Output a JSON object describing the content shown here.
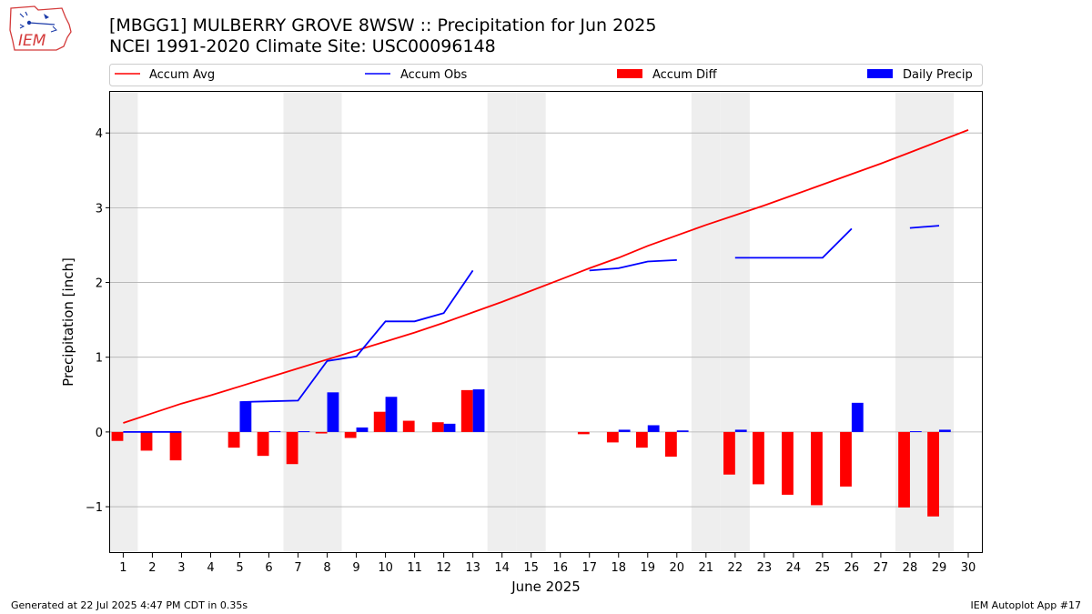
{
  "title_line1": "[MBGG1] MULBERRY GROVE 8WSW :: Precipitation for Jun 2025",
  "title_line2": "NCEI 1991-2020 Climate Site: USC00096148",
  "logo_text": "IEM",
  "footer_left": "Generated at 22 Jul 2025 4:47 PM CDT in 0.35s",
  "footer_right": "IEM Autoplot App #17",
  "colors": {
    "accum_avg": "#ff0000",
    "accum_obs": "#0000ff",
    "accum_diff": "#ff0000",
    "daily_precip": "#0000ff",
    "weekend_band": "#eeeeee",
    "grid": "#b0b0b0"
  },
  "chart_data": {
    "type": "bar",
    "xlabel": "June 2025",
    "ylabel": "Precipitation [inch]",
    "ylim": [
      -1.62,
      4.55
    ],
    "yticks": [
      -1,
      0,
      1,
      2,
      3,
      4
    ],
    "ytick_labels": [
      "−1",
      "0",
      "1",
      "2",
      "3",
      "4"
    ],
    "x": [
      1,
      2,
      3,
      4,
      5,
      6,
      7,
      8,
      9,
      10,
      11,
      12,
      13,
      14,
      15,
      16,
      17,
      18,
      19,
      20,
      21,
      22,
      23,
      24,
      25,
      26,
      27,
      28,
      29,
      30
    ],
    "weekend_days": [
      1,
      7,
      8,
      14,
      15,
      21,
      22,
      28,
      29
    ],
    "grid": "horizontal",
    "legend_placement": "top",
    "series": [
      {
        "name": "Accum Avg",
        "kind": "line",
        "values": [
          0.12,
          0.25,
          0.38,
          0.49,
          0.61,
          0.73,
          0.85,
          0.97,
          1.09,
          1.21,
          1.33,
          1.46,
          1.6,
          1.74,
          1.89,
          2.04,
          2.19,
          2.33,
          2.49,
          2.63,
          2.77,
          2.9,
          3.03,
          3.17,
          3.31,
          3.45,
          3.59,
          3.74,
          3.89,
          4.04
        ]
      },
      {
        "name": "Accum Obs",
        "kind": "line",
        "values": [
          0.0,
          0.0,
          0.0,
          null,
          0.4,
          0.41,
          0.42,
          0.95,
          1.01,
          1.48,
          1.48,
          1.59,
          2.16,
          null,
          null,
          null,
          2.16,
          2.19,
          2.28,
          2.3,
          null,
          2.33,
          2.33,
          2.33,
          2.33,
          2.72,
          null,
          2.73,
          2.76,
          null
        ]
      },
      {
        "name": "Accum Diff",
        "kind": "bar",
        "values": [
          -0.12,
          -0.25,
          -0.38,
          null,
          -0.21,
          -0.32,
          -0.43,
          -0.02,
          -0.08,
          0.27,
          0.15,
          0.13,
          0.56,
          null,
          null,
          null,
          -0.03,
          -0.14,
          -0.21,
          -0.33,
          null,
          -0.57,
          -0.7,
          -0.84,
          -0.98,
          -0.73,
          null,
          -1.01,
          -1.13,
          null
        ]
      },
      {
        "name": "Daily Precip",
        "kind": "bar",
        "values": [
          0.0,
          0.0,
          0.0,
          null,
          0.4,
          0.01,
          0.01,
          0.53,
          0.06,
          0.47,
          0.0,
          0.11,
          0.57,
          null,
          null,
          null,
          0.0,
          0.03,
          0.09,
          0.02,
          null,
          0.03,
          0.0,
          0.0,
          0.0,
          0.39,
          null,
          0.01,
          0.03,
          null
        ]
      }
    ]
  }
}
